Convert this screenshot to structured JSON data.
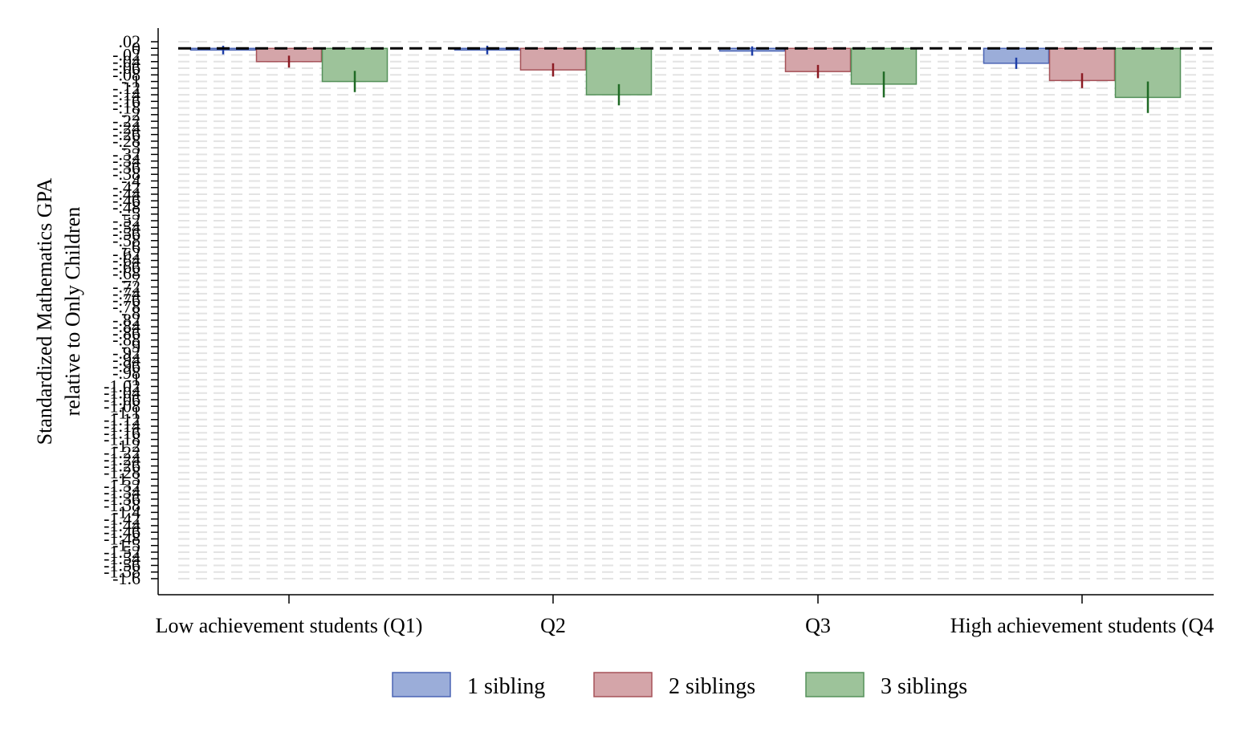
{
  "chart_data": {
    "type": "bar",
    "ylabel_line1": "Standardized Mathematics GPA",
    "ylabel_line2": "relative to Only Children",
    "xlabel": "",
    "categories": [
      "Low achievement students (Q1)",
      "Q2",
      "Q3",
      "High achievement students (Q4"
    ],
    "ylim": [
      -1.6,
      0.02
    ],
    "yticks": [
      0.02,
      0,
      -0.02,
      -0.04,
      -0.06,
      -0.08,
      -0.1,
      -0.12,
      -0.14,
      -0.16,
      -0.18,
      -0.2,
      -0.22,
      -0.24,
      -0.26,
      -0.28,
      -0.3,
      -0.32,
      -0.34,
      -0.36,
      -0.38,
      -0.4,
      -0.42,
      -0.44,
      -0.46,
      -0.48,
      -0.5,
      -0.52,
      -0.54,
      -0.56,
      -0.58,
      -0.6,
      -0.62,
      -0.64,
      -0.66,
      -0.68,
      -0.7,
      -0.72,
      -0.74,
      -0.76,
      -0.78,
      -0.8,
      -0.82,
      -0.84,
      -0.86,
      -0.88,
      -0.9,
      -0.92,
      -0.94,
      -0.96,
      -0.98,
      -1,
      -1.02,
      -1.04,
      -1.06,
      -1.08,
      -1.1,
      -1.12,
      -1.14,
      -1.16,
      -1.18,
      -1.2,
      -1.22,
      -1.24,
      -1.26,
      -1.28,
      -1.3,
      -1.32,
      -1.34,
      -1.36,
      -1.38,
      -1.4,
      -1.42,
      -1.44,
      -1.46,
      -1.48,
      -1.5,
      -1.52,
      -1.54,
      -1.56,
      -1.58,
      -1.6
    ],
    "ytick_labels": [
      ".02",
      "0",
      "-.02",
      "-.04",
      "-.06",
      "-.08",
      "-.1",
      "-.12",
      "-.14",
      "-.16",
      "-.18",
      "-.2",
      "-.22",
      "-.24",
      "-.26",
      "-.28",
      "-.3",
      "-.32",
      "-.34",
      "-.36",
      "-.38",
      "-.4",
      "-.42",
      "-.44",
      "-.46",
      "-.48",
      "-.5",
      "-.52",
      "-.54",
      "-.56",
      "-.58",
      "-.6",
      "-.62",
      "-.64",
      "-.66",
      "-.68",
      "-.7",
      "-.72",
      "-.74",
      "-.76",
      "-.78",
      "-.8",
      "-.82",
      "-.84",
      "-.86",
      "-.88",
      "-.9",
      "-.92",
      "-.94",
      "-.96",
      "-.98",
      "-1",
      "-1.02",
      "-1.04",
      "-1.06",
      "-1.08",
      "-1.1",
      "-1.12",
      "-1.14",
      "-1.16",
      "-1.18",
      "-1.2",
      "-1.22",
      "-1.24",
      "-1.26",
      "-1.28",
      "-1.3",
      "-1.32",
      "-1.34",
      "-1.36",
      "-1.38",
      "-1.4",
      "-1.42",
      "-1.44",
      "-1.46",
      "-1.48",
      "-1.5",
      "-1.52",
      "-1.54",
      "-1.56",
      "-1.58",
      "-1.6"
    ],
    "grid": true,
    "reference_line_y": 0,
    "legend_position": "bottom",
    "series": [
      {
        "name": "1 sibling",
        "color": "#9badd9",
        "edge": "#4a64b4",
        "ci_color": "#1f3fa8",
        "values": [
          -0.005,
          -0.005,
          -0.008,
          -0.045
        ],
        "ci": [
          [
            -0.018,
            0.008
          ],
          [
            -0.018,
            0.008
          ],
          [
            -0.022,
            0.006
          ],
          [
            -0.062,
            -0.028
          ]
        ]
      },
      {
        "name": "2 siblings",
        "color": "#d4a5a9",
        "edge": "#a65259",
        "ci_color": "#8b1a22",
        "values": [
          -0.04,
          -0.065,
          -0.07,
          -0.097
        ],
        "ci": [
          [
            -0.058,
            -0.022
          ],
          [
            -0.085,
            -0.045
          ],
          [
            -0.09,
            -0.05
          ],
          [
            -0.12,
            -0.075
          ]
        ]
      },
      {
        "name": "3 siblings",
        "color": "#9dc39a",
        "edge": "#55915a",
        "ci_color": "#1f6a25",
        "values": [
          -0.1,
          -0.14,
          -0.108,
          -0.148
        ],
        "ci": [
          [
            -0.132,
            -0.068
          ],
          [
            -0.172,
            -0.108
          ],
          [
            -0.148,
            -0.07
          ],
          [
            -0.195,
            -0.1
          ]
        ]
      }
    ]
  }
}
